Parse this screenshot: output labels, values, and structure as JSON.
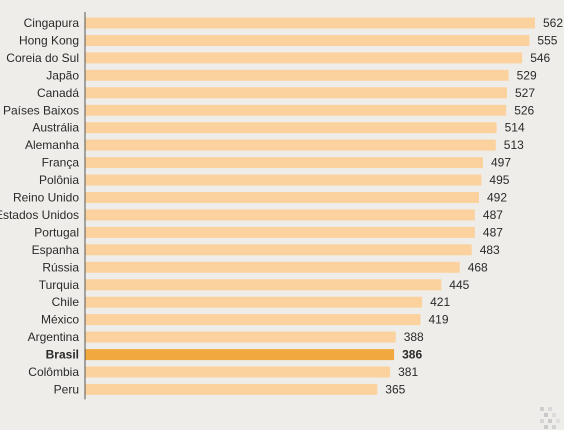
{
  "chart_data": {
    "type": "bar",
    "orientation": "horizontal",
    "title": "",
    "xlabel": "",
    "ylabel": "",
    "grid": false,
    "legend": "none",
    "categories": [
      "Cingapura",
      "Hong Kong",
      "Coreia do Sul",
      "Japão",
      "Canadá",
      "Países Baixos",
      "Austrália",
      "Alemanha",
      "França",
      "Polônia",
      "Reino Unido",
      "Estados Unidos",
      "Portugal",
      "Espanha",
      "Rússia",
      "Turquia",
      "Chile",
      "México",
      "Argentina",
      "Brasil",
      "Colômbia",
      "Peru"
    ],
    "values": [
      562,
      555,
      546,
      529,
      527,
      526,
      514,
      513,
      497,
      495,
      492,
      487,
      487,
      483,
      468,
      445,
      421,
      419,
      388,
      386,
      381,
      365
    ],
    "highlight": "Brasil",
    "colors": {
      "bar": "#fbd29d",
      "bar_highlight": "#f1a83f",
      "axis": "#555555",
      "background": "#eeedea"
    }
  }
}
